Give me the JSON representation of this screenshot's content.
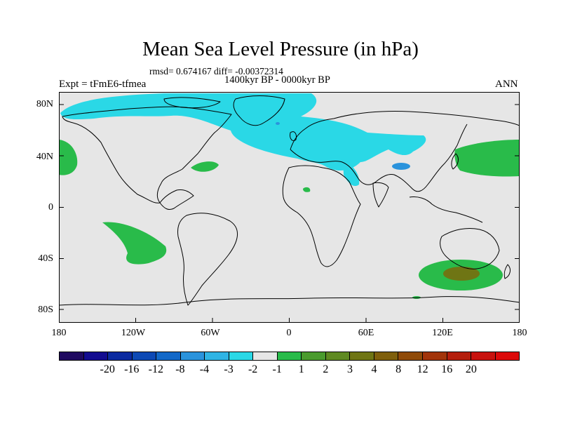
{
  "title": "Mean Sea Level Pressure (in hPa)",
  "stats": "rmsd= 0.674167 diff= -0.00372314",
  "periods": "1400kyr BP - 0000kyr BP",
  "experiment": "Expt = tFmE6-tfmea",
  "season": "ANN",
  "y_axis_labels": [
    "80N",
    "40N",
    "0",
    "40S",
    "80S"
  ],
  "x_axis_labels": [
    "180",
    "120W",
    "60W",
    "0",
    "60E",
    "120E",
    "180"
  ],
  "colorbar": {
    "colors": [
      "#1f0a60",
      "#130c90",
      "#0b2aa0",
      "#0d49b5",
      "#1268c8",
      "#2a93dc",
      "#2fb4e4",
      "#2ad8e6",
      "#e6e6e6",
      "#29bb4a",
      "#4a9b2e",
      "#5f8a22",
      "#6f7514",
      "#7f5f0c",
      "#8f4a08",
      "#a2340a",
      "#b41e0c",
      "#c8120e",
      "#dc0a0a"
    ],
    "labels": [
      "-20",
      "-16",
      "-12",
      "-8",
      "-4",
      "-3",
      "-2",
      "-1",
      "1",
      "2",
      "3",
      "4",
      "8",
      "12",
      "16",
      "20"
    ]
  },
  "colors": {
    "background": "#e6e6e6",
    "cyan": "#2ad8e6",
    "green": "#29bb4a",
    "brown": "#6f7514",
    "blue": "#2a93dc",
    "coast": "#000000"
  }
}
